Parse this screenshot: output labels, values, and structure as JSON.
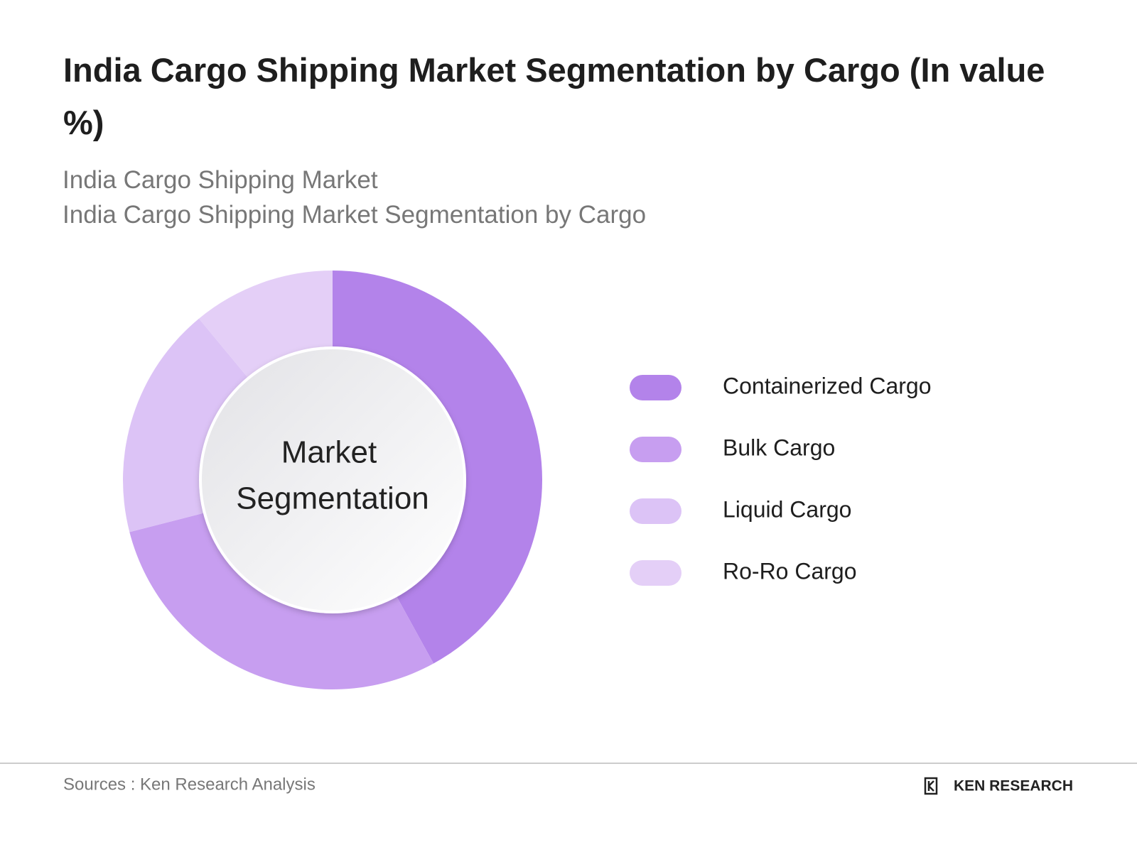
{
  "chart_data": {
    "type": "donut",
    "title": "India Cargo Shipping Market Segmentation by Cargo (In value %)",
    "subtitle": [
      "India Cargo Shipping Market",
      "India Cargo Shipping Market Segmentation by Cargo"
    ],
    "center_label": [
      "Market",
      "Segmentation"
    ],
    "categories": [
      "Containerized Cargo",
      "Bulk Cargo",
      "Liquid Cargo",
      "Ro-Ro Cargo"
    ],
    "values": [
      42,
      29,
      18,
      11
    ],
    "colors": [
      "#b383ea",
      "#c79ef0",
      "#dcc3f6",
      "#e4cff7"
    ]
  },
  "footer": {
    "source": "Sources : Ken Research Analysis",
    "logo": "KEN RESEARCH"
  }
}
